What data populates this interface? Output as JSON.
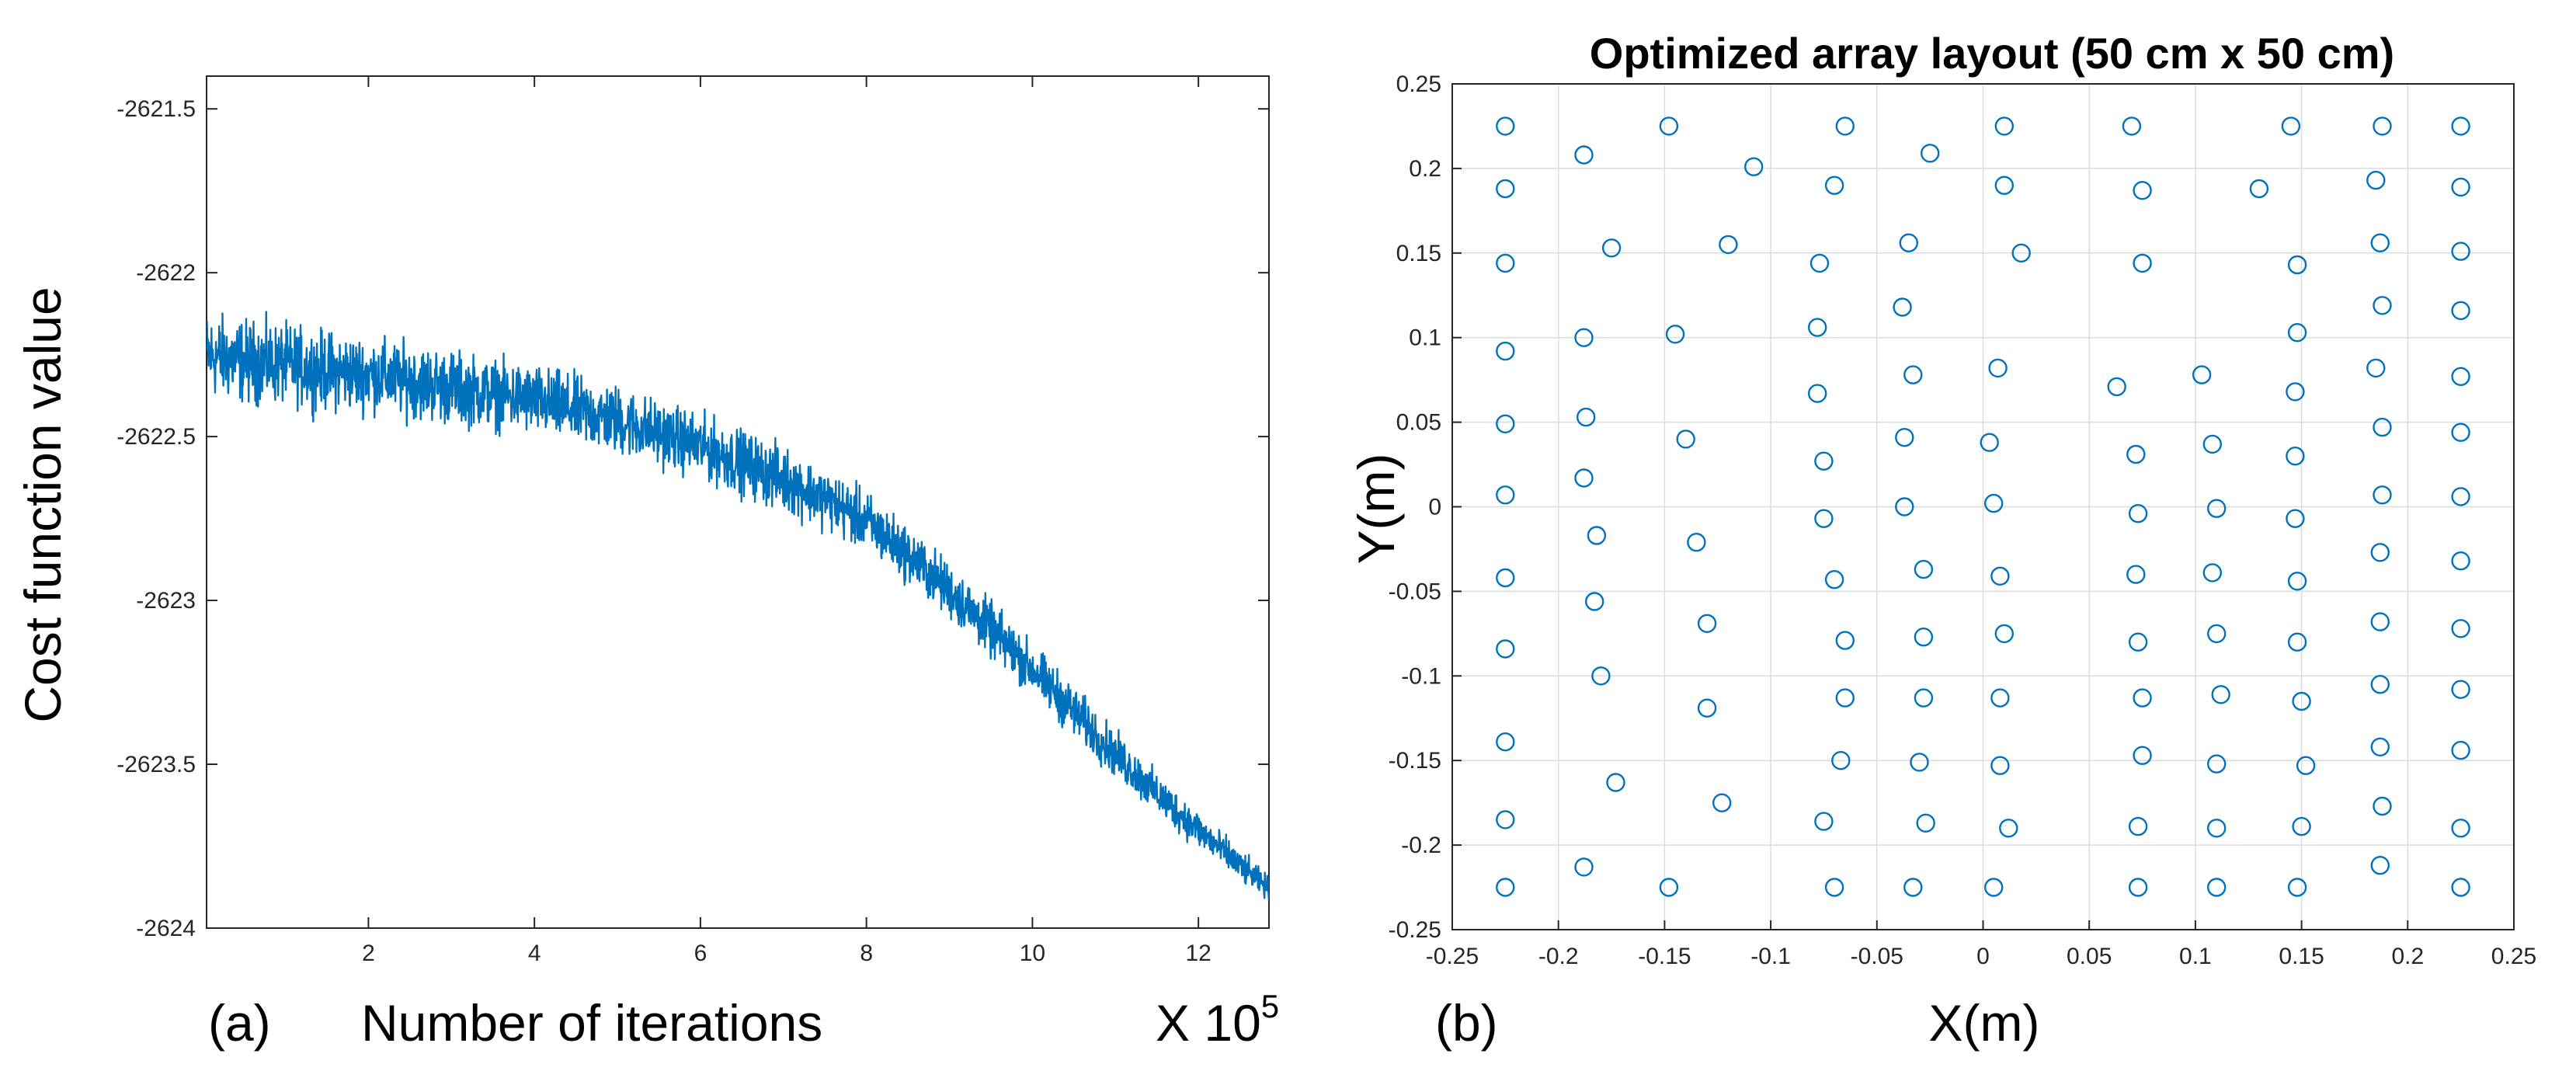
{
  "chart_data": [
    {
      "type": "line",
      "panel_label": "(a)",
      "title": "",
      "xlabel": "Number of iterations",
      "x_multiplier": "X 10",
      "x_multiplier_exponent": "5",
      "ylabel": "Cost function value",
      "xlim": [
        0.05,
        12.85
      ],
      "ylim": [
        -2624,
        -2621.4
      ],
      "xticks": [
        2,
        4,
        6,
        8,
        10,
        12
      ],
      "yticks": [
        -2621.5,
        -2622,
        -2622.5,
        -2623,
        -2623.5,
        -2624
      ],
      "ytick_labels": [
        "-2621.5",
        "-2622",
        "-2622.5",
        "-2623",
        "-2623.5",
        "-2624"
      ],
      "grid": false,
      "color": "#0072BD",
      "series": [
        {
          "name": "cost",
          "x": [
            0.05,
            0.5,
            1,
            1.5,
            2,
            2.5,
            3,
            3.5,
            4,
            4.5,
            5,
            5.5,
            6,
            6.5,
            7,
            7.5,
            8,
            8.5,
            9,
            9.5,
            10,
            10.5,
            11,
            11.5,
            12,
            12.5,
            12.85
          ],
          "values": [
            -2622.25,
            -2622.27,
            -2622.28,
            -2622.3,
            -2622.31,
            -2622.33,
            -2622.35,
            -2622.37,
            -2622.39,
            -2622.42,
            -2622.45,
            -2622.49,
            -2622.53,
            -2622.58,
            -2622.63,
            -2622.69,
            -2622.76,
            -2622.86,
            -2622.97,
            -2623.09,
            -2623.21,
            -2623.34,
            -2623.47,
            -2623.59,
            -2623.7,
            -2623.81,
            -2623.88
          ],
          "spread": [
            0.18,
            0.18,
            0.17,
            0.17,
            0.16,
            0.16,
            0.16,
            0.15,
            0.15,
            0.15,
            0.15,
            0.14,
            0.14,
            0.14,
            0.14,
            0.13,
            0.13,
            0.12,
            0.12,
            0.12,
            0.11,
            0.11,
            0.1,
            0.09,
            0.08,
            0.07,
            0.05
          ]
        }
      ]
    },
    {
      "type": "scatter",
      "panel_label": "(b)",
      "title": "Optimized array layout (50 cm x 50 cm)",
      "xlabel": "X(m)",
      "ylabel": "Y(m)",
      "xlim": [
        -0.25,
        0.25
      ],
      "ylim": [
        -0.25,
        0.25
      ],
      "xticks": [
        -0.25,
        -0.2,
        -0.15,
        -0.1,
        -0.05,
        0,
        0.05,
        0.1,
        0.15,
        0.2,
        0.25
      ],
      "xtick_labels": [
        "-0.25",
        "-0.2",
        "-0.15",
        "-0.1",
        "-0.05",
        "0",
        "0.05",
        "0.1",
        "0.15",
        "0.2",
        "0.25"
      ],
      "yticks": [
        0.25,
        0.2,
        0.15,
        0.1,
        0.05,
        0,
        -0.05,
        -0.1,
        -0.15,
        -0.2,
        -0.25
      ],
      "ytick_labels": [
        "0.25",
        "0.2",
        "0.15",
        "0.1",
        "0.05",
        "0",
        "-0.05",
        "-0.1",
        "-0.15",
        "-0.2",
        "-0.25"
      ],
      "grid": true,
      "marker": "open-circle",
      "color": "#0072BD",
      "points": [
        [
          -0.225,
          0.225
        ],
        [
          -0.225,
          0.188
        ],
        [
          -0.225,
          0.144
        ],
        [
          -0.225,
          0.092
        ],
        [
          -0.225,
          0.049
        ],
        [
          -0.225,
          0.007
        ],
        [
          -0.225,
          -0.042
        ],
        [
          -0.225,
          -0.084
        ],
        [
          -0.225,
          -0.139
        ],
        [
          -0.225,
          -0.185
        ],
        [
          -0.225,
          -0.225
        ],
        [
          -0.188,
          0.208
        ],
        [
          -0.188,
          0.1
        ],
        [
          -0.187,
          0.053
        ],
        [
          -0.188,
          0.017
        ],
        [
          -0.182,
          -0.017
        ],
        [
          -0.183,
          -0.056
        ],
        [
          -0.18,
          -0.1
        ],
        [
          -0.188,
          -0.213
        ],
        [
          -0.175,
          0.153
        ],
        [
          -0.173,
          -0.163
        ],
        [
          -0.148,
          0.225
        ],
        [
          -0.145,
          0.102
        ],
        [
          -0.148,
          -0.225
        ],
        [
          -0.14,
          0.04
        ],
        [
          -0.135,
          -0.021
        ],
        [
          -0.13,
          -0.069
        ],
        [
          -0.13,
          -0.119
        ],
        [
          -0.12,
          0.155
        ],
        [
          -0.123,
          -0.175
        ],
        [
          -0.108,
          0.201
        ],
        [
          -0.077,
          0.144
        ],
        [
          -0.078,
          0.106
        ],
        [
          -0.078,
          0.067
        ],
        [
          -0.075,
          0.027
        ],
        [
          -0.075,
          -0.007
        ],
        [
          -0.07,
          -0.043
        ],
        [
          -0.065,
          -0.079
        ],
        [
          -0.065,
          -0.113
        ],
        [
          -0.067,
          -0.15
        ],
        [
          -0.075,
          -0.186
        ],
        [
          -0.07,
          -0.225
        ],
        [
          -0.065,
          0.225
        ],
        [
          -0.07,
          0.19
        ],
        [
          -0.035,
          0.156
        ],
        [
          -0.038,
          0.118
        ],
        [
          -0.033,
          0.078
        ],
        [
          -0.037,
          0.041
        ],
        [
          -0.037,
          0
        ],
        [
          -0.028,
          -0.037
        ],
        [
          -0.028,
          -0.077
        ],
        [
          -0.028,
          -0.113
        ],
        [
          -0.03,
          -0.151
        ],
        [
          -0.027,
          -0.187
        ],
        [
          -0.033,
          -0.225
        ],
        [
          -0.025,
          0.209
        ],
        [
          0.01,
          0.225
        ],
        [
          0.01,
          0.19
        ],
        [
          0.018,
          0.15
        ],
        [
          0.007,
          0.082
        ],
        [
          0.003,
          0.038
        ],
        [
          0.005,
          0.002
        ],
        [
          0.008,
          -0.041
        ],
        [
          0.01,
          -0.075
        ],
        [
          0.008,
          -0.113
        ],
        [
          0.008,
          -0.153
        ],
        [
          0.012,
          -0.19
        ],
        [
          0.005,
          -0.225
        ],
        [
          0.07,
          0.225
        ],
        [
          0.075,
          0.187
        ],
        [
          0.075,
          0.144
        ],
        [
          0.063,
          0.071
        ],
        [
          0.072,
          0.031
        ],
        [
          0.073,
          -0.004
        ],
        [
          0.072,
          -0.04
        ],
        [
          0.073,
          -0.08
        ],
        [
          0.075,
          -0.113
        ],
        [
          0.075,
          -0.147
        ],
        [
          0.073,
          -0.189
        ],
        [
          0.073,
          -0.225
        ],
        [
          0.103,
          0.078
        ],
        [
          0.108,
          0.037
        ],
        [
          0.11,
          -0.001
        ],
        [
          0.108,
          -0.039
        ],
        [
          0.11,
          -0.075
        ],
        [
          0.112,
          -0.111
        ],
        [
          0.11,
          -0.152
        ],
        [
          0.11,
          -0.19
        ],
        [
          0.11,
          -0.225
        ],
        [
          0.13,
          0.188
        ],
        [
          0.145,
          0.225
        ],
        [
          0.148,
          0.143
        ],
        [
          0.148,
          0.103
        ],
        [
          0.147,
          0.068
        ],
        [
          0.147,
          0.03
        ],
        [
          0.147,
          -0.007
        ],
        [
          0.148,
          -0.044
        ],
        [
          0.148,
          -0.08
        ],
        [
          0.15,
          -0.115
        ],
        [
          0.152,
          -0.153
        ],
        [
          0.15,
          -0.189
        ],
        [
          0.148,
          -0.225
        ],
        [
          0.188,
          0.225
        ],
        [
          0.185,
          0.193
        ],
        [
          0.187,
          0.156
        ],
        [
          0.188,
          0.119
        ],
        [
          0.185,
          0.082
        ],
        [
          0.188,
          0.047
        ],
        [
          0.188,
          0.007
        ],
        [
          0.187,
          -0.027
        ],
        [
          0.187,
          -0.068
        ],
        [
          0.187,
          -0.105
        ],
        [
          0.187,
          -0.142
        ],
        [
          0.188,
          -0.177
        ],
        [
          0.187,
          -0.212
        ],
        [
          0.225,
          0.225
        ],
        [
          0.225,
          0.189
        ],
        [
          0.225,
          0.151
        ],
        [
          0.225,
          0.116
        ],
        [
          0.225,
          0.077
        ],
        [
          0.225,
          0.044
        ],
        [
          0.225,
          0.006
        ],
        [
          0.225,
          -0.032
        ],
        [
          0.225,
          -0.072
        ],
        [
          0.225,
          -0.108
        ],
        [
          0.225,
          -0.144
        ],
        [
          0.225,
          -0.19
        ],
        [
          0.225,
          -0.225
        ]
      ]
    }
  ]
}
